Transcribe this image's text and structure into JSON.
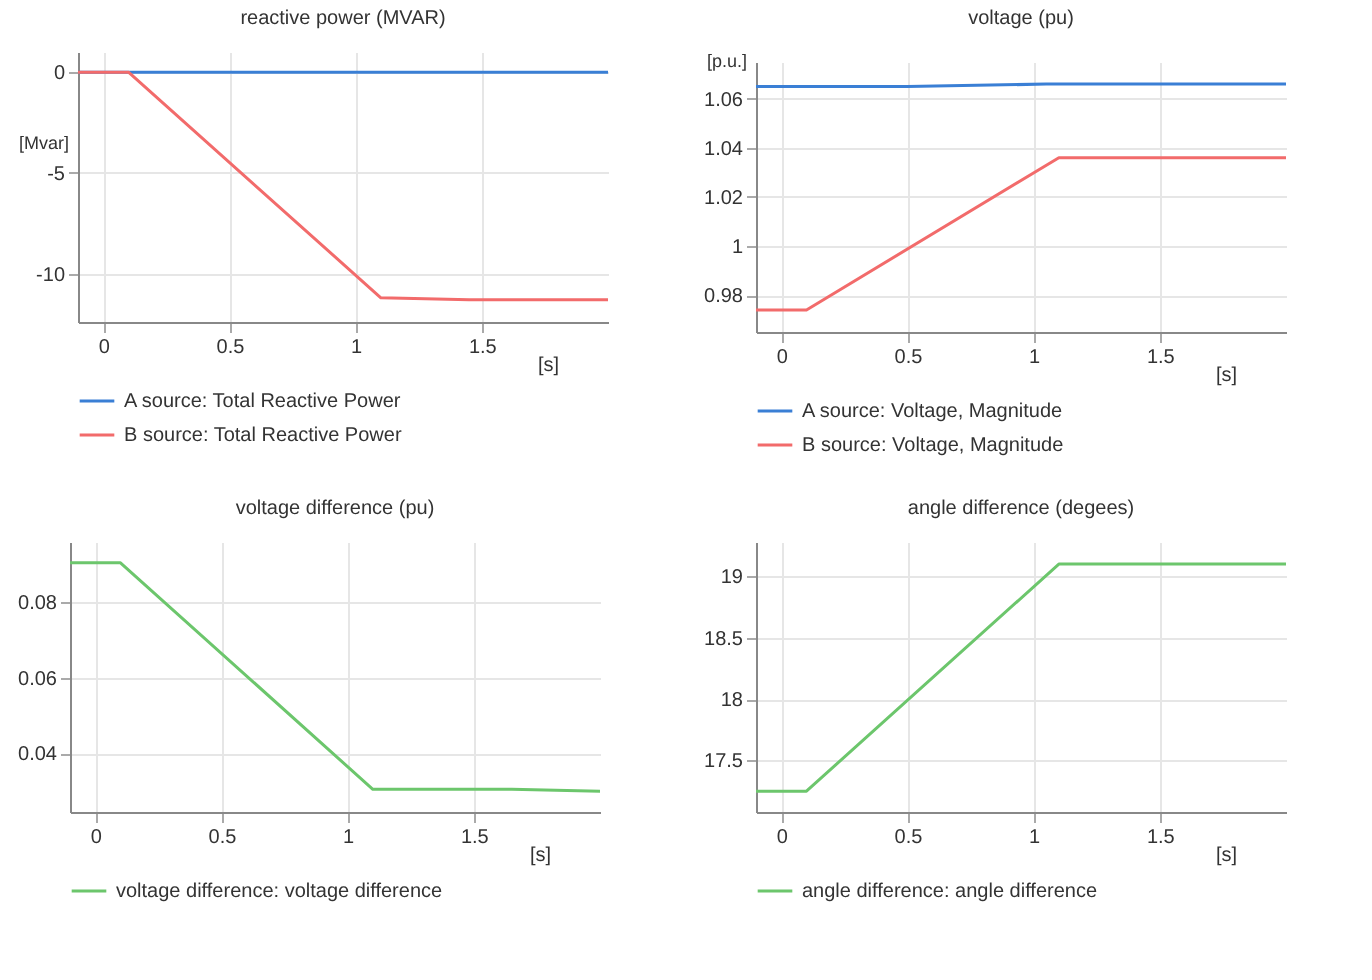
{
  "chart_data": [
    {
      "type": "line",
      "title": "reactive power (MVAR)",
      "xlabel": "[s]",
      "ylabel": "[Mvar]",
      "xlim": [
        -0.1,
        2.0
      ],
      "xticks": [
        0,
        0.5,
        1,
        1.5
      ],
      "ylim": [
        -12.4,
        1
      ],
      "yticks": [
        -10,
        -5,
        0
      ],
      "grid": true,
      "legend": "bottom",
      "series": [
        {
          "name": "A  source: Total Reactive Power",
          "color": "#3a7fd5",
          "x": [
            -0.1,
            2.0
          ],
          "values": [
            0,
            0
          ]
        },
        {
          "name": "B source: Total Reactive Power",
          "color": "#f26b6b",
          "x": [
            -0.1,
            0.1,
            1.1,
            1.45,
            2.0
          ],
          "values": [
            0,
            0,
            -11.2,
            -11.3,
            -11.3
          ]
        }
      ]
    },
    {
      "type": "line",
      "title": "voltage (pu)",
      "xlabel": "[s]",
      "ylabel": "[p.u.]",
      "xlim": [
        -0.1,
        2.0
      ],
      "xticks": [
        0,
        0.5,
        1,
        1.5
      ],
      "ylim": [
        0.965,
        1.075
      ],
      "yticks": [
        0.98,
        1,
        1.02,
        1.04,
        1.06
      ],
      "grid": true,
      "legend": "bottom",
      "series": [
        {
          "name": "A  source: Voltage, Magnitude",
          "color": "#3a7fd5",
          "x": [
            -0.1,
            0.5,
            1.05,
            2.0
          ],
          "values": [
            1.065,
            1.065,
            1.066,
            1.066
          ]
        },
        {
          "name": "B source: Voltage, Magnitude",
          "color": "#f26b6b",
          "x": [
            -0.1,
            0.1,
            1.1,
            2.0
          ],
          "values": [
            0.974,
            0.974,
            1.036,
            1.036
          ]
        }
      ]
    },
    {
      "type": "line",
      "title": "voltage difference (pu)",
      "xlabel": "[s]",
      "xlim": [
        -0.1,
        2.0
      ],
      "xticks": [
        0,
        0.5,
        1,
        1.5
      ],
      "ylim": [
        0.0245,
        0.096
      ],
      "yticks": [
        0.04,
        0.06,
        0.08
      ],
      "grid": true,
      "legend": "bottom",
      "series": [
        {
          "name": "voltage difference: voltage difference",
          "color": "#6cc66c",
          "x": [
            -0.1,
            0.1,
            1.1,
            1.65,
            2.0
          ],
          "values": [
            0.0905,
            0.0905,
            0.0305,
            0.0305,
            0.03
          ]
        }
      ]
    },
    {
      "type": "line",
      "title": "angle difference (degees)",
      "xlabel": "[s]",
      "xlim": [
        -0.1,
        2.0
      ],
      "xticks": [
        0,
        0.5,
        1,
        1.5
      ],
      "ylim": [
        17.08,
        19.28
      ],
      "yticks": [
        17.5,
        18,
        18.5,
        19
      ],
      "grid": true,
      "legend": "bottom",
      "series": [
        {
          "name": "angle difference: angle difference",
          "color": "#6cc66c",
          "x": [
            -0.1,
            0.1,
            1.1,
            2.0
          ],
          "values": [
            17.25,
            17.25,
            19.1,
            19.1
          ]
        }
      ]
    }
  ]
}
